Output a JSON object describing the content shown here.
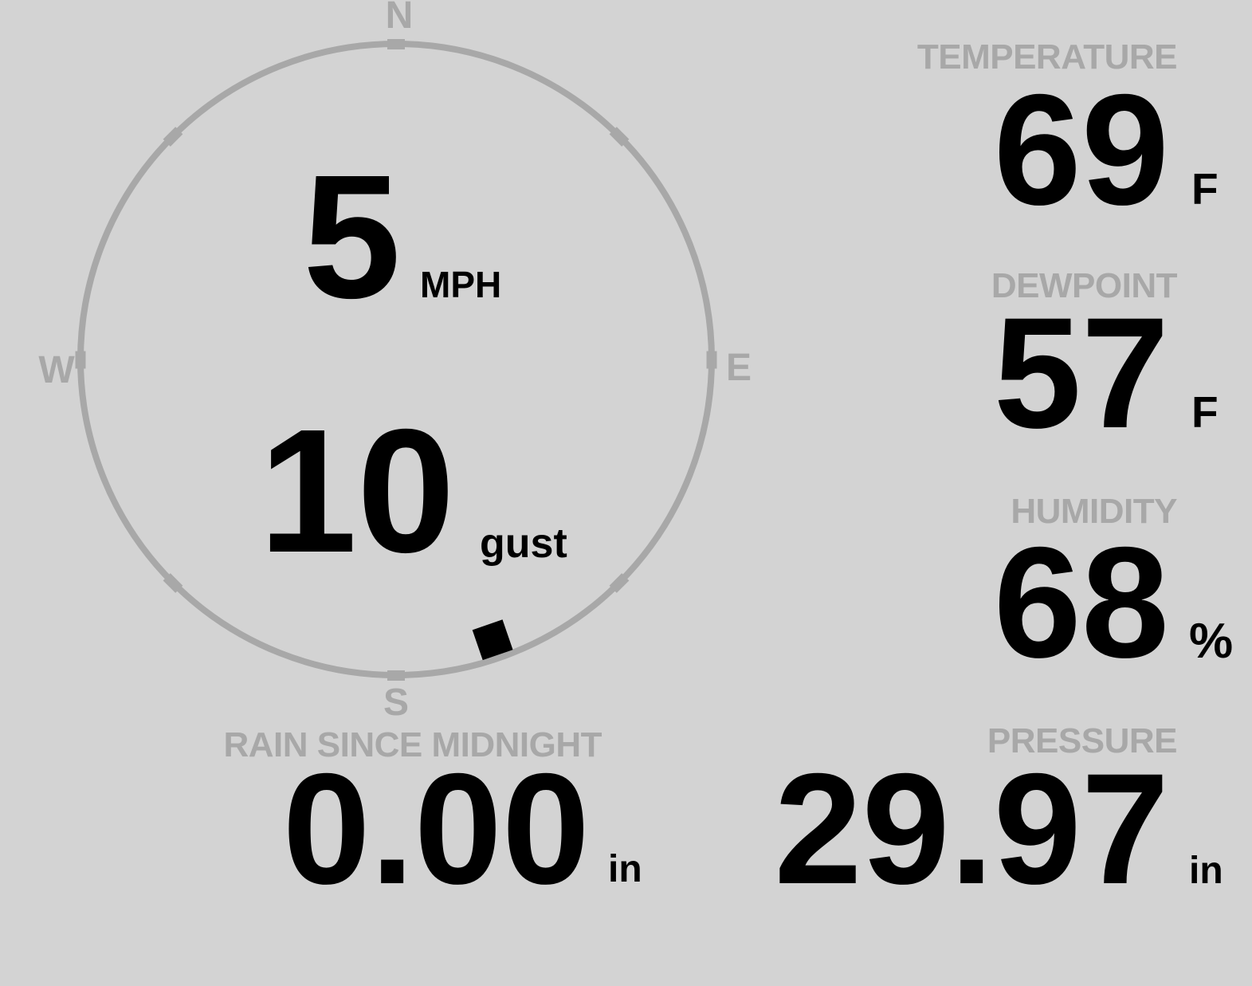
{
  "compass": {
    "north": "N",
    "east": "E",
    "south": "S",
    "west": "W",
    "speed": "5",
    "speed_unit": "MPH",
    "gust": "10",
    "gust_label": "gust",
    "direction_deg": 161
  },
  "metrics": {
    "temperature": {
      "label": "TEMPERATURE",
      "value": "69",
      "unit": "F"
    },
    "dewpoint": {
      "label": "DEWPOINT",
      "value": "57",
      "unit": "F"
    },
    "humidity": {
      "label": "HUMIDITY",
      "value": "68",
      "unit": "%"
    },
    "rain": {
      "label": "RAIN SINCE MIDNIGHT",
      "value": "0.00",
      "unit": "in"
    },
    "pressure": {
      "label": "PRESSURE",
      "value": "29.97",
      "unit": "in"
    }
  },
  "colors": {
    "background": "#d3d3d3",
    "muted": "#a8a8a8",
    "value_text": "#000000"
  }
}
